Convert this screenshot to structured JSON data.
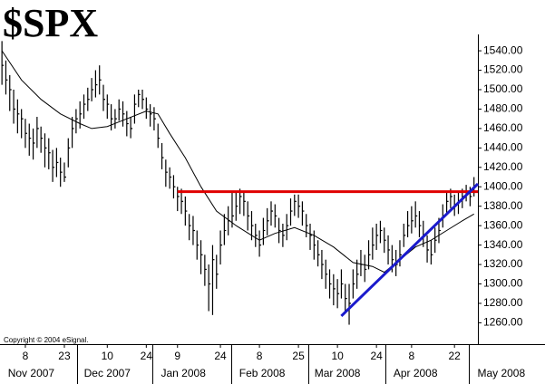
{
  "chart_data": {
    "type": "ohlc",
    "title": "$SPX",
    "annotation": "Copyright © 2004 eSignal.",
    "color": "#000000",
    "xlim": [
      -0.5,
      122
    ],
    "ylim": [
      1238,
      1555
    ],
    "yticks": [
      {
        "value": 1260,
        "label": "1260.00"
      },
      {
        "value": 1280,
        "label": "1280.00"
      },
      {
        "value": 1300,
        "label": "1300.00"
      },
      {
        "value": 1320,
        "label": "1320.00"
      },
      {
        "value": 1340,
        "label": "1340.00"
      },
      {
        "value": 1360,
        "label": "1360.00"
      },
      {
        "value": 1380,
        "label": "1380.00"
      },
      {
        "value": 1400,
        "label": "1400.00"
      },
      {
        "value": 1420,
        "label": "1420.00"
      },
      {
        "value": 1440,
        "label": "1440.00"
      },
      {
        "value": 1460,
        "label": "1460.00"
      },
      {
        "value": 1480,
        "label": "1480.00"
      },
      {
        "value": 1500,
        "label": "1500.00"
      },
      {
        "value": 1520,
        "label": "1520.00"
      },
      {
        "value": 1540,
        "label": "1540.00"
      }
    ],
    "xticks": [
      {
        "value": 6,
        "label": "8"
      },
      {
        "value": 16,
        "label": "23"
      },
      {
        "value": 27,
        "label": "10"
      },
      {
        "value": 37,
        "label": "24"
      },
      {
        "value": 45,
        "label": "9"
      },
      {
        "value": 56,
        "label": "24"
      },
      {
        "value": 66,
        "label": "8"
      },
      {
        "value": 76,
        "label": "25"
      },
      {
        "value": 86,
        "label": "10"
      },
      {
        "value": 96,
        "label": "24"
      },
      {
        "value": 105,
        "label": "8"
      },
      {
        "value": 116,
        "label": "22"
      }
    ],
    "month_ticks": [
      {
        "value": 7.5,
        "label": "Nov 2007"
      },
      {
        "value": 27,
        "label": "Dec 2007"
      },
      {
        "value": 46.5,
        "label": "Jan 2008"
      },
      {
        "value": 66.7,
        "label": "Feb 2008"
      },
      {
        "value": 86,
        "label": "Mar 2008"
      },
      {
        "value": 106,
        "label": "Apr 2008"
      },
      {
        "value": 128,
        "label": "May 2008"
      }
    ],
    "high": [
      1550,
      1530,
      1515,
      1500,
      1490,
      1480,
      1470,
      1465,
      1460,
      1472,
      1462,
      1455,
      1450,
      1438,
      1440,
      1430,
      1425,
      1450,
      1472,
      1480,
      1488,
      1495,
      1502,
      1512,
      1520,
      1525,
      1505,
      1495,
      1485,
      1480,
      1490,
      1488,
      1478,
      1472,
      1495,
      1500,
      1500,
      1492,
      1485,
      1482,
      1465,
      1445,
      1428,
      1420,
      1412,
      1400,
      1398,
      1390,
      1372,
      1370,
      1355,
      1345,
      1330,
      1320,
      1340,
      1330,
      1355,
      1372,
      1380,
      1395,
      1395,
      1398,
      1395,
      1385,
      1375,
      1362,
      1355,
      1368,
      1378,
      1385,
      1382,
      1368,
      1362,
      1372,
      1388,
      1392,
      1392,
      1385,
      1372,
      1362,
      1355,
      1345,
      1335,
      1325,
      1315,
      1310,
      1305,
      1315,
      1300,
      1300,
      1315,
      1325,
      1335,
      1330,
      1345,
      1358,
      1362,
      1365,
      1358,
      1350,
      1340,
      1335,
      1345,
      1362,
      1375,
      1380,
      1385,
      1375,
      1365,
      1350,
      1345,
      1358,
      1368,
      1382,
      1395,
      1398,
      1392,
      1395,
      1398,
      1402,
      1400,
      1410
    ],
    "low": [
      1505,
      1495,
      1478,
      1465,
      1455,
      1450,
      1440,
      1432,
      1428,
      1440,
      1435,
      1420,
      1418,
      1405,
      1410,
      1400,
      1405,
      1420,
      1440,
      1455,
      1460,
      1470,
      1478,
      1488,
      1492,
      1495,
      1478,
      1470,
      1458,
      1460,
      1468,
      1462,
      1452,
      1450,
      1465,
      1482,
      1480,
      1470,
      1462,
      1458,
      1440,
      1418,
      1400,
      1398,
      1388,
      1375,
      1372,
      1360,
      1345,
      1340,
      1325,
      1310,
      1298,
      1272,
      1268,
      1295,
      1320,
      1340,
      1350,
      1358,
      1365,
      1372,
      1370,
      1355,
      1345,
      1338,
      1328,
      1340,
      1350,
      1360,
      1358,
      1342,
      1338,
      1345,
      1360,
      1370,
      1368,
      1360,
      1348,
      1335,
      1325,
      1318,
      1305,
      1295,
      1285,
      1278,
      1275,
      1285,
      1270,
      1258,
      1285,
      1295,
      1308,
      1302,
      1315,
      1325,
      1335,
      1342,
      1332,
      1320,
      1312,
      1308,
      1318,
      1338,
      1348,
      1352,
      1358,
      1348,
      1338,
      1322,
      1320,
      1332,
      1342,
      1358,
      1372,
      1378,
      1370,
      1372,
      1378,
      1385,
      1380,
      1390
    ],
    "close": [
      1525,
      1510,
      1500,
      1480,
      1475,
      1470,
      1455,
      1450,
      1445,
      1460,
      1450,
      1440,
      1435,
      1420,
      1425,
      1415,
      1410,
      1440,
      1460,
      1470,
      1475,
      1485,
      1490,
      1500,
      1505,
      1510,
      1490,
      1485,
      1470,
      1470,
      1480,
      1475,
      1465,
      1460,
      1485,
      1495,
      1490,
      1480,
      1475,
      1470,
      1450,
      1430,
      1415,
      1410,
      1400,
      1390,
      1385,
      1375,
      1360,
      1355,
      1340,
      1330,
      1315,
      1300,
      1325,
      1310,
      1340,
      1355,
      1365,
      1370,
      1380,
      1390,
      1385,
      1370,
      1360,
      1350,
      1340,
      1355,
      1365,
      1375,
      1370,
      1355,
      1350,
      1360,
      1375,
      1385,
      1380,
      1375,
      1360,
      1350,
      1340,
      1330,
      1320,
      1310,
      1300,
      1295,
      1290,
      1300,
      1285,
      1280,
      1300,
      1310,
      1320,
      1315,
      1330,
      1340,
      1350,
      1355,
      1345,
      1335,
      1325,
      1320,
      1330,
      1350,
      1360,
      1365,
      1370,
      1360,
      1350,
      1335,
      1330,
      1345,
      1355,
      1370,
      1385,
      1390,
      1380,
      1385,
      1390,
      1395,
      1390,
      1400
    ],
    "lines": [
      {
        "color": "#000000",
        "x": [
          0,
          5,
          10,
          15,
          20,
          23,
          27,
          32,
          37,
          40,
          43,
          47,
          51,
          55,
          60,
          64,
          66,
          70,
          75,
          80,
          85,
          90,
          95,
          98,
          102,
          106,
          110,
          114,
          118,
          121
        ],
        "values": [
          1540,
          1510,
          1490,
          1475,
          1465,
          1460,
          1462,
          1470,
          1478,
          1475,
          1455,
          1430,
          1400,
          1375,
          1360,
          1350,
          1345,
          1352,
          1358,
          1350,
          1338,
          1322,
          1318,
          1312,
          1325,
          1338,
          1345,
          1355,
          1365,
          1372
        ]
      },
      {
        "color": "#e00000",
        "x": [
          45,
          122
        ],
        "values": [
          1395,
          1395
        ]
      },
      {
        "color": "#1a1acc",
        "x": [
          87,
          122
        ],
        "values": [
          1267,
          1403
        ]
      }
    ]
  }
}
